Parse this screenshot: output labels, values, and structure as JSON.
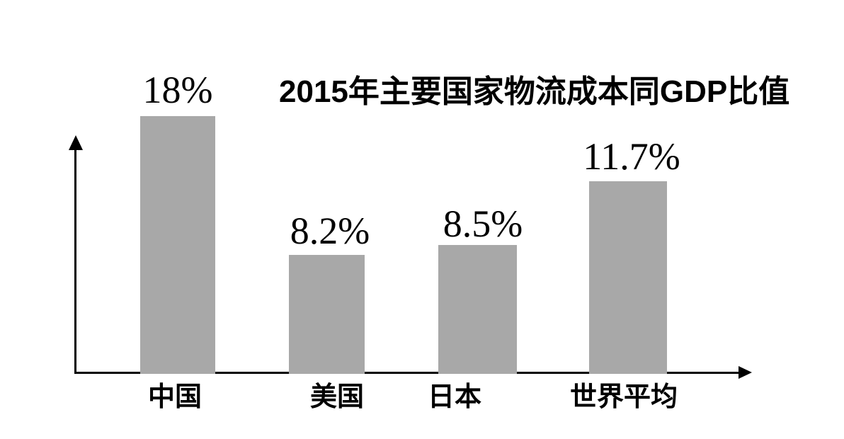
{
  "page": {
    "background_color": "#ffffff"
  },
  "chart_data": {
    "type": "bar",
    "title": "2015年主要国家物流成本同GDP比值",
    "categories": [
      "中国",
      "美国",
      "日本",
      "世界平均"
    ],
    "values": [
      18,
      8.2,
      8.5,
      11.7
    ],
    "value_labels": [
      "18%",
      "8.2%",
      "8.5%",
      "11.7%"
    ],
    "bars": [
      {
        "category": "中国",
        "value": 18,
        "label": "18%"
      },
      {
        "category": "美国",
        "value": 8.2,
        "label": "8.2%"
      },
      {
        "category": "日本",
        "value": 8.5,
        "label": "8.5%"
      },
      {
        "category": "世界平均",
        "value": 11.7,
        "label": "11.7%"
      }
    ],
    "xlabel": "",
    "ylabel": "",
    "ylim": [
      0,
      20
    ],
    "grid": false,
    "legend": false,
    "bar_color": "#a8a8a8",
    "axis_color": "#000000",
    "text_color": "#000000",
    "axes": {
      "x": {
        "arrow": true,
        "tick_labels": [
          "中国",
          "美国",
          "日本",
          "世界平均"
        ]
      },
      "y": {
        "arrow": true,
        "tick_labels": []
      }
    },
    "drawn_to_scale": false
  }
}
